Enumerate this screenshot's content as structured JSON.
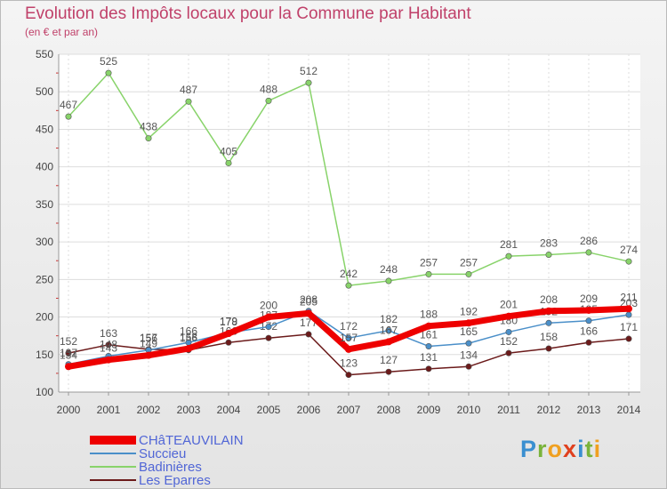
{
  "chart_data": {
    "type": "line",
    "title": "Evolution des Impôts locaux pour la Commune par Habitant",
    "subtitle": "(en € et par an)",
    "x": [
      "2000",
      "2001",
      "2002",
      "2003",
      "2004",
      "2005",
      "2006",
      "2007",
      "2008",
      "2009",
      "2010",
      "2011",
      "2012",
      "2013",
      "2014"
    ],
    "yticks": [
      100,
      150,
      200,
      250,
      300,
      350,
      400,
      450,
      500,
      550
    ],
    "ylim": [
      100,
      550
    ],
    "grid": true,
    "series": [
      {
        "name": "Les Eparres",
        "color": "#6b1a1a",
        "values": [
          152,
          163,
          157,
          156,
          166,
          172,
          177,
          123,
          127,
          131,
          134,
          152,
          158,
          166,
          171
        ],
        "labels": [
          "152",
          "163",
          "157",
          "156",
          "166",
          "172",
          "177",
          "123",
          "127",
          "131",
          "134",
          "152",
          "158",
          "166",
          "171"
        ]
      },
      {
        "name": "Succieu",
        "color": "#4a8fc9",
        "values": [
          137,
          148,
          156,
          166,
          179,
          187,
          208,
          172,
          182,
          161,
          165,
          180,
          192,
          195,
          203
        ],
        "labels": [
          "137",
          "148",
          "156",
          "166",
          "179",
          "187",
          "208",
          "172",
          "182",
          "161",
          "165",
          "180",
          "192",
          "195",
          "203"
        ]
      },
      {
        "name": "Badinières",
        "color": "#88d36a",
        "values": [
          467,
          525,
          438,
          487,
          405,
          488,
          512,
          242,
          248,
          257,
          257,
          281,
          283,
          286,
          274
        ],
        "labels": [
          "467",
          "525",
          "438",
          "487",
          "405",
          "488",
          "512",
          "242",
          "248",
          "257",
          "257",
          "281",
          "283",
          "286",
          "274"
        ]
      },
      {
        "name": "CHâTEAUVILAIN",
        "color": "#ee0000",
        "values": [
          134,
          143,
          149,
          158,
          178,
          200,
          205,
          157,
          167,
          188,
          192,
          201,
          208,
          209,
          211
        ],
        "labels": [
          "134",
          "143",
          "149",
          "158",
          "178",
          "200",
          "205",
          "157",
          "167",
          "188",
          "192",
          "201",
          "208",
          "209",
          "211"
        ]
      }
    ],
    "legend": [
      {
        "name": "CHâTEAUVILAIN",
        "color": "#ee0000"
      },
      {
        "name": "Succieu",
        "color": "#4a8fc9"
      },
      {
        "name": "Badinières",
        "color": "#88d36a"
      },
      {
        "name": "Les Eparres",
        "color": "#6b1a1a"
      }
    ],
    "legend_position": "bottom-left"
  },
  "logo": {
    "text": "Proxiti",
    "colors": [
      "#3a8fd0",
      "#7ab33b",
      "#f0a020",
      "#e0401e",
      "#3a8fd0",
      "#7ab33b",
      "#f0a020"
    ]
  }
}
